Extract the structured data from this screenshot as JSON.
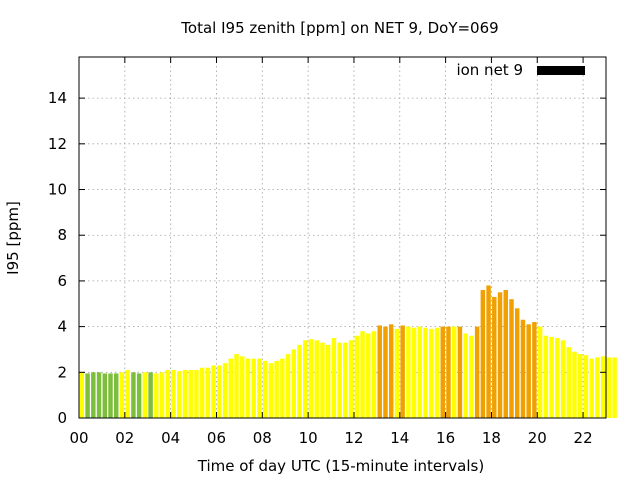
{
  "chart_data": {
    "type": "bar",
    "title": "Total I95 zenith [ppm] on NET 9, DoY=069",
    "xlabel": "Time of day UTC (15-minute intervals)",
    "ylabel": "I95 [ppm]",
    "xlim": [
      0,
      23
    ],
    "ylim": [
      0,
      15.8
    ],
    "x_ticks": [
      "00",
      "02",
      "04",
      "06",
      "08",
      "10",
      "12",
      "14",
      "16",
      "18",
      "20",
      "22"
    ],
    "x_tick_values": [
      0,
      2,
      4,
      6,
      8,
      10,
      12,
      14,
      16,
      18,
      20,
      22
    ],
    "y_ticks": [
      "0",
      "2",
      "4",
      "6",
      "8",
      "10",
      "12",
      "14"
    ],
    "y_tick_values": [
      0,
      2,
      4,
      6,
      8,
      10,
      12,
      14
    ],
    "grid": true,
    "legend": {
      "label": "ion net 9",
      "color": "#000000",
      "placement": "top-right"
    },
    "colors": {
      "green": "#7cbf3c",
      "yellow": "#ffff00",
      "orange": "#f0a000",
      "legend": "#000000"
    },
    "interval_hours": 0.25,
    "x_start": 0,
    "values": [
      2.0,
      1.95,
      2.0,
      2.0,
      1.95,
      1.95,
      1.95,
      2.0,
      2.1,
      2.0,
      1.95,
      2.0,
      2.0,
      1.95,
      2.0,
      2.1,
      2.1,
      2.05,
      2.1,
      2.1,
      2.1,
      2.2,
      2.2,
      2.3,
      2.3,
      2.4,
      2.6,
      2.8,
      2.7,
      2.6,
      2.6,
      2.6,
      2.5,
      2.4,
      2.5,
      2.6,
      2.8,
      3.0,
      3.2,
      3.4,
      3.45,
      3.4,
      3.3,
      3.2,
      3.5,
      3.3,
      3.3,
      3.4,
      3.6,
      3.8,
      3.7,
      3.8,
      4.05,
      4.0,
      4.1,
      3.9,
      4.05,
      4.0,
      3.95,
      4.0,
      3.95,
      3.9,
      3.95,
      4.0,
      4.0,
      4.0,
      4.0,
      3.7,
      3.6,
      4.0,
      5.6,
      5.8,
      5.3,
      5.5,
      5.6,
      5.2,
      4.8,
      4.3,
      4.1,
      4.2,
      4.0,
      3.6,
      3.55,
      3.5,
      3.4,
      3.1,
      2.9,
      2.8,
      2.75,
      2.6,
      2.65,
      2.7,
      2.65,
      2.65
    ],
    "bar_colors": [
      "yellow",
      "green",
      "green",
      "green",
      "green",
      "green",
      "green",
      "yellow",
      "yellow",
      "green",
      "green",
      "yellow",
      "green",
      "yellow",
      "yellow",
      "yellow",
      "yellow",
      "yellow",
      "yellow",
      "yellow",
      "yellow",
      "yellow",
      "yellow",
      "yellow",
      "yellow",
      "yellow",
      "yellow",
      "yellow",
      "yellow",
      "yellow",
      "yellow",
      "yellow",
      "yellow",
      "yellow",
      "yellow",
      "yellow",
      "yellow",
      "yellow",
      "yellow",
      "yellow",
      "yellow",
      "yellow",
      "yellow",
      "yellow",
      "yellow",
      "yellow",
      "yellow",
      "yellow",
      "yellow",
      "yellow",
      "yellow",
      "yellow",
      "orange",
      "orange",
      "orange",
      "yellow",
      "orange",
      "yellow",
      "yellow",
      "yellow",
      "yellow",
      "yellow",
      "yellow",
      "orange",
      "orange",
      "yellow",
      "orange",
      "yellow",
      "yellow",
      "orange",
      "orange",
      "orange",
      "orange",
      "orange",
      "orange",
      "orange",
      "orange",
      "orange",
      "orange",
      "orange",
      "yellow",
      "yellow",
      "yellow",
      "yellow",
      "yellow",
      "yellow",
      "yellow",
      "yellow",
      "yellow",
      "yellow",
      "yellow",
      "yellow",
      "yellow",
      "yellow"
    ]
  }
}
